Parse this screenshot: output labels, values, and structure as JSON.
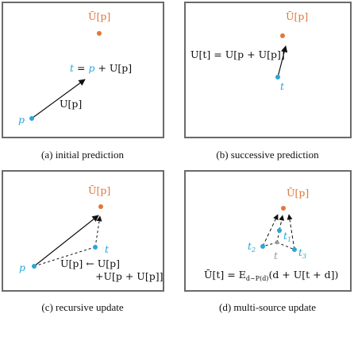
{
  "labels": {
    "u_bar_p": "Ū[p]",
    "p": "p",
    "t": "t",
    "t1": "t",
    "t1_sub": "1",
    "t2": "t",
    "t2_sub": "2",
    "t3": "t",
    "t3_sub": "3",
    "t_gray": "t",
    "eq_a_t": "t",
    "eq_a_eq": " = ",
    "eq_a_p": "p",
    "eq_a_rest": " + U[p]",
    "arrow_a": "U[p]",
    "eq_b": "U[t] = U[p + U[p]]",
    "eq_c1": "U[p] ← U[p]",
    "eq_c2": "+U[p + U[p]]",
    "eq_d_lhs": "Ū[t] = E",
    "eq_d_sub": "d∼P(d)",
    "eq_d_rhs": "(d + U[t + d])"
  },
  "captions": {
    "a": "(a) initial prediction",
    "b": "(b) successive prediction",
    "c": "(c) recursive update",
    "d": "(d) multi-source update"
  },
  "colors": {
    "point_blue": "#2aa7d6",
    "point_orange": "#e0783a",
    "frame": "#6a6a6a"
  }
}
